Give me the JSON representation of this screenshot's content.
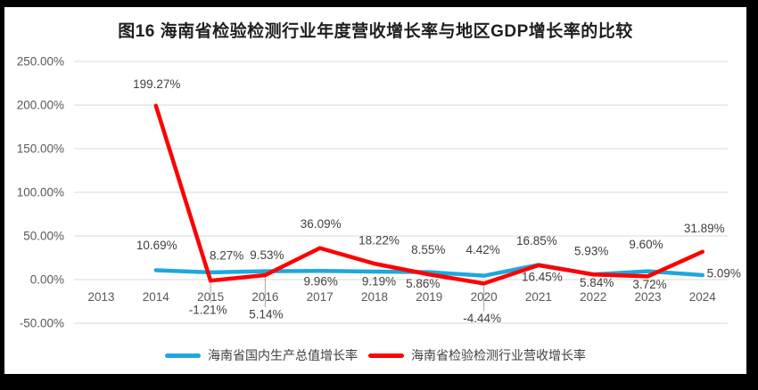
{
  "page": {
    "background_color": "#000000",
    "panel_color": "#ffffff"
  },
  "chart_data": {
    "type": "line",
    "title": "图16  海南省检验检测行业年度营收增长率与地区GDP增长率的比较",
    "categories": [
      "2013",
      "2014",
      "2015",
      "2016",
      "2017",
      "2018",
      "2019",
      "2020",
      "2021",
      "2022",
      "2023",
      "2024"
    ],
    "series": [
      {
        "name": "海南省国内生产总值增长率",
        "color": "#1ea7e0",
        "values": [
          null,
          10.69,
          8.27,
          9.53,
          9.96,
          9.19,
          8.55,
          4.42,
          16.85,
          5.93,
          9.6,
          5.09
        ]
      },
      {
        "name": "海南省检验检测行业营收增长率",
        "color": "#fe0000",
        "values": [
          null,
          199.27,
          -1.21,
          5.14,
          36.09,
          18.22,
          5.86,
          -4.44,
          16.45,
          5.84,
          3.72,
          31.89
        ]
      }
    ],
    "ylim": [
      -50,
      250
    ],
    "yticks": [
      {
        "label": "250.00%",
        "value": 250
      },
      {
        "label": "200.00%",
        "value": 200
      },
      {
        "label": "150.00%",
        "value": 150
      },
      {
        "label": "100.00%",
        "value": 100
      },
      {
        "label": "50.00%",
        "value": 50
      },
      {
        "label": "0.00%",
        "value": 0
      },
      {
        "label": "-50.00%",
        "value": -50
      }
    ],
    "grid": true,
    "legend_position": "bottom",
    "data_label_format": "0.00%",
    "label_offsets": [
      [
        null,
        [
          1,
          -28
        ],
        [
          18,
          -19
        ],
        [
          2,
          -18
        ],
        [
          1,
          12
        ],
        [
          5,
          11
        ],
        [
          -1,
          -25
        ],
        [
          -1,
          -29
        ],
        [
          -2,
          -27
        ],
        [
          -2,
          -26
        ],
        [
          -2,
          -30
        ],
        [
          24,
          -2
        ]
      ],
      [
        null,
        [
          1,
          -24
        ],
        [
          -3,
          33
        ],
        [
          1,
          44
        ],
        [
          1,
          -27
        ],
        [
          5,
          -26
        ],
        [
          -7,
          10
        ],
        [
          -2,
          39
        ],
        [
          4,
          13
        ],
        [
          4,
          9
        ],
        [
          2,
          9
        ],
        [
          2,
          -26
        ]
      ]
    ],
    "leader_lines": [
      [
        1,
        2
      ],
      [
        1,
        3
      ],
      [
        1,
        7
      ]
    ],
    "colors": {
      "grid": "#d9d9d9",
      "axis_text": "#595959",
      "data_label_text": "#3f3f3f",
      "leader": "#a6a6a6",
      "title_text": "#1f1f1f"
    }
  }
}
